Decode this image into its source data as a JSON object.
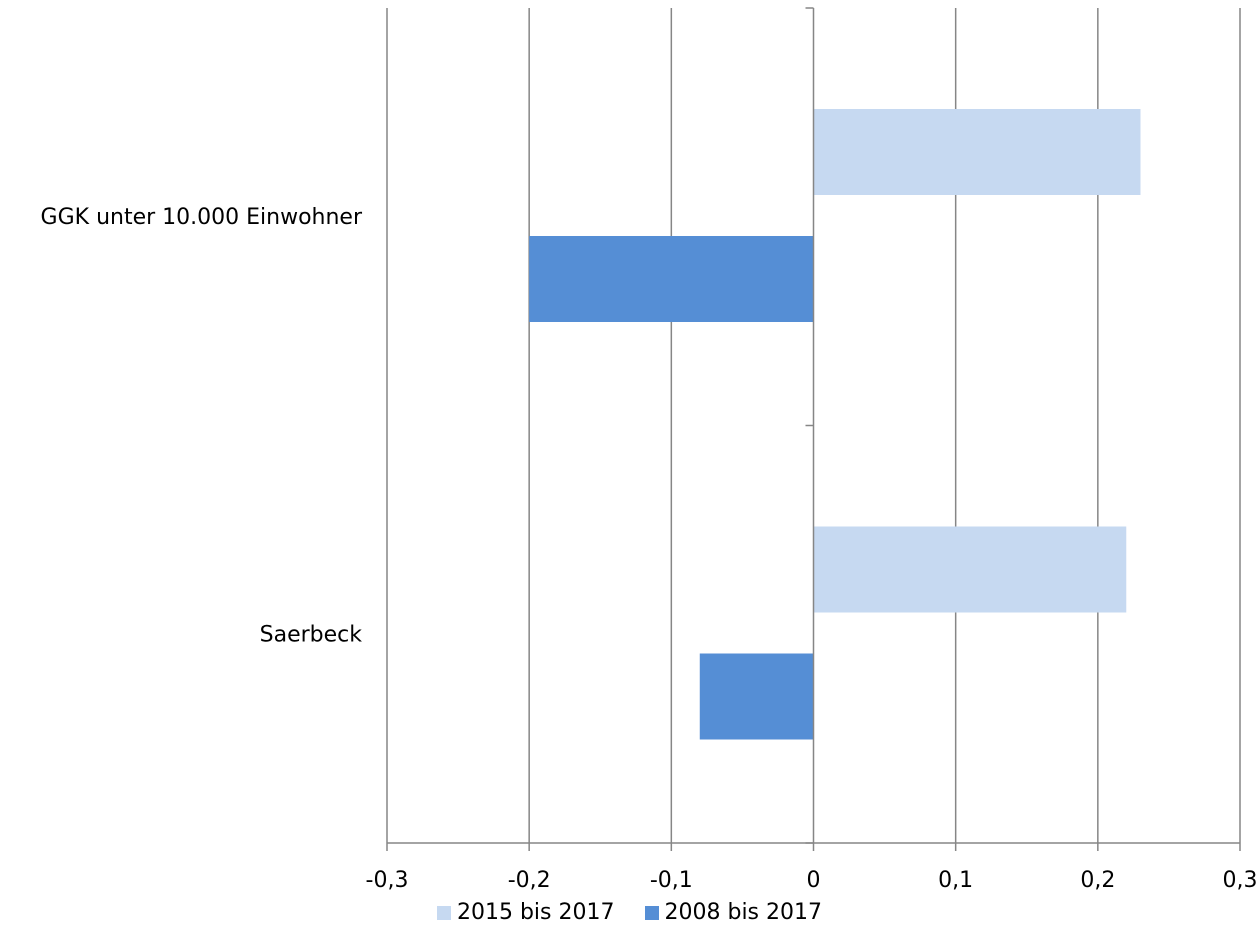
{
  "chart_data": {
    "type": "bar",
    "orientation": "horizontal",
    "categories": [
      "GGK unter 10.000 Einwohner",
      "Saerbeck"
    ],
    "series": [
      {
        "name": "2015 bis 2017",
        "values": [
          0.23,
          0.22
        ],
        "color": "#c6d9f1"
      },
      {
        "name": "2008 bis 2017",
        "values": [
          -0.2,
          -0.08
        ],
        "color": "#558ed5"
      }
    ],
    "xlim": [
      -0.3,
      0.3
    ],
    "xticks": [
      -0.3,
      -0.2,
      -0.1,
      0,
      0.1,
      0.2,
      0.3
    ],
    "xtick_labels": [
      "-0,3",
      "-0,2",
      "-0,1",
      "0",
      "0,1",
      "0,2",
      "0,3"
    ],
    "grid": "vertical",
    "legend_position": "bottom"
  }
}
